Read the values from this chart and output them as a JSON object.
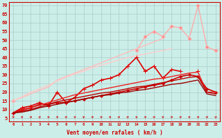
{
  "bg_color": "#cceee8",
  "grid_color": "#aacccc",
  "xlabel": "Vent moyen/en rafales ( km/h )",
  "ylabel_ticks": [
    5,
    10,
    15,
    20,
    25,
    30,
    35,
    40,
    45,
    50,
    55,
    60,
    65,
    70
  ],
  "x_values": [
    0,
    1,
    2,
    3,
    4,
    5,
    6,
    7,
    8,
    9,
    10,
    11,
    12,
    13,
    14,
    15,
    16,
    17,
    18,
    19,
    20,
    21,
    22,
    23
  ],
  "lines": [
    {
      "color": "#ffaaaa",
      "linewidth": 1.0,
      "marker": "D",
      "markersize": 2.5,
      "markerfacecolor": "#ff8888",
      "y": [
        15,
        null,
        null,
        null,
        null,
        null,
        null,
        null,
        null,
        null,
        null,
        null,
        null,
        null,
        44,
        52,
        55,
        52,
        58,
        57,
        51,
        70,
        46,
        44
      ]
    },
    {
      "color": "#ffbbbb",
      "linewidth": 1.0,
      "marker": null,
      "markersize": 0,
      "markerfacecolor": "#ffbbbb",
      "y": [
        15,
        17,
        19,
        21,
        23,
        27,
        29,
        31,
        33,
        35,
        37,
        39,
        41,
        43,
        45,
        47,
        49,
        51,
        null,
        null,
        null,
        null,
        null,
        null
      ]
    },
    {
      "color": "#ffcccc",
      "linewidth": 1.0,
      "marker": null,
      "markersize": 0,
      "markerfacecolor": "#ffcccc",
      "y": [
        15,
        17.5,
        20,
        22,
        24,
        26.5,
        28.5,
        30.5,
        32,
        34,
        35.5,
        37,
        38.5,
        40,
        41,
        42,
        43,
        44,
        45,
        null,
        null,
        null,
        null,
        null
      ]
    },
    {
      "color": "#dd0000",
      "linewidth": 1.2,
      "marker": "+",
      "markersize": 4,
      "markerfacecolor": "#dd0000",
      "y": [
        8,
        11,
        12,
        14,
        12,
        20,
        14,
        17,
        22,
        24,
        27,
        28,
        30,
        35,
        40,
        32,
        35,
        28,
        33,
        32,
        null,
        32,
        null,
        null
      ]
    },
    {
      "color": "#cc0000",
      "linewidth": 1.2,
      "marker": "D",
      "markersize": 2,
      "markerfacecolor": "#cc0000",
      "y": [
        8,
        10,
        11,
        13,
        13,
        14,
        14,
        15,
        16,
        17,
        18,
        19,
        20,
        21,
        22,
        23,
        24,
        25,
        27,
        29,
        30,
        29,
        22,
        20
      ]
    },
    {
      "color": "#ee2222",
      "linewidth": 1.0,
      "marker": null,
      "markersize": 0,
      "markerfacecolor": "#ee2222",
      "y": [
        8,
        9.5,
        11,
        12.5,
        14,
        15.5,
        17,
        18.5,
        19.5,
        20.5,
        21.5,
        22.5,
        23.5,
        24.5,
        25.5,
        26.5,
        27.5,
        28,
        29,
        30,
        31,
        31.5,
        20,
        20
      ]
    },
    {
      "color": "#bb0000",
      "linewidth": 1.0,
      "marker": null,
      "markersize": 0,
      "markerfacecolor": "#bb0000",
      "y": [
        8,
        9,
        10,
        11.5,
        13,
        14.5,
        15.5,
        16.5,
        17.5,
        18.5,
        19.5,
        20,
        21,
        22,
        23,
        23.5,
        24.5,
        25.5,
        26.5,
        27.5,
        28.5,
        29,
        20,
        19
      ]
    },
    {
      "color": "#990000",
      "linewidth": 1.0,
      "marker": null,
      "markersize": 0,
      "markerfacecolor": "#990000",
      "y": [
        8,
        8.5,
        9.5,
        11,
        12,
        13,
        14,
        15,
        16,
        17,
        18,
        18.5,
        19.5,
        20,
        21,
        21.5,
        22.5,
        23.5,
        24.5,
        25,
        26,
        27,
        19,
        18
      ]
    }
  ],
  "ylim": [
    3,
    72
  ],
  "xlim": [
    -0.5,
    23.5
  ],
  "figsize": [
    3.2,
    2.0
  ],
  "dpi": 100
}
